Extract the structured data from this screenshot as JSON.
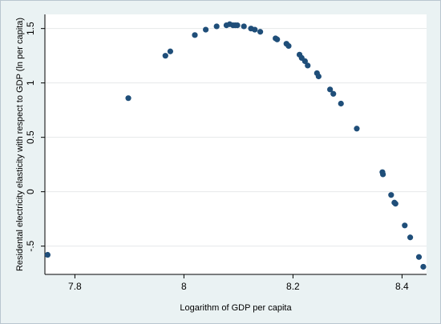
{
  "chart_data": {
    "type": "scatter",
    "xlabel": "Logarithm of GDP per capita",
    "ylabel": "Residental electricity elasticity with respect to GDP (ln per capita)",
    "xlim": [
      7.745,
      8.445
    ],
    "ylim": [
      -0.76,
      1.63
    ],
    "xticks": [
      7.8,
      8.0,
      8.2,
      8.4
    ],
    "xtick_labels": [
      "7.8",
      "8",
      "8.2",
      "8.4"
    ],
    "yticks": [
      -0.5,
      0,
      0.5,
      1,
      1.5
    ],
    "ytick_labels": [
      "-.5",
      "0",
      "0.5",
      "1",
      "1.5"
    ],
    "grid": "horizontal",
    "marker_color": "#1f4e79",
    "background_color": "#eaf2f3",
    "plot_background_color": "#ffffff",
    "grid_color": "#e6e8ea",
    "series": [
      {
        "x": [
          7.75,
          7.898,
          7.966,
          7.975,
          8.02,
          8.04,
          8.06,
          8.078,
          8.084,
          8.09,
          8.094,
          8.098,
          8.11,
          8.123,
          8.13,
          8.14,
          8.168,
          8.171,
          8.188,
          8.192,
          8.212,
          8.216,
          8.222,
          8.227,
          8.244,
          8.247,
          8.268,
          8.274,
          8.288,
          8.317,
          8.364,
          8.365,
          8.38,
          8.386,
          8.388,
          8.405,
          8.415,
          8.431,
          8.439
        ],
        "y": [
          -0.58,
          0.86,
          1.25,
          1.29,
          1.44,
          1.49,
          1.52,
          1.53,
          1.54,
          1.53,
          1.53,
          1.53,
          1.52,
          1.5,
          1.49,
          1.47,
          1.41,
          1.4,
          1.36,
          1.34,
          1.26,
          1.23,
          1.2,
          1.16,
          1.09,
          1.06,
          0.94,
          0.9,
          0.81,
          0.58,
          0.18,
          0.16,
          -0.03,
          -0.1,
          -0.11,
          -0.31,
          -0.42,
          -0.6,
          -0.69
        ]
      }
    ]
  }
}
